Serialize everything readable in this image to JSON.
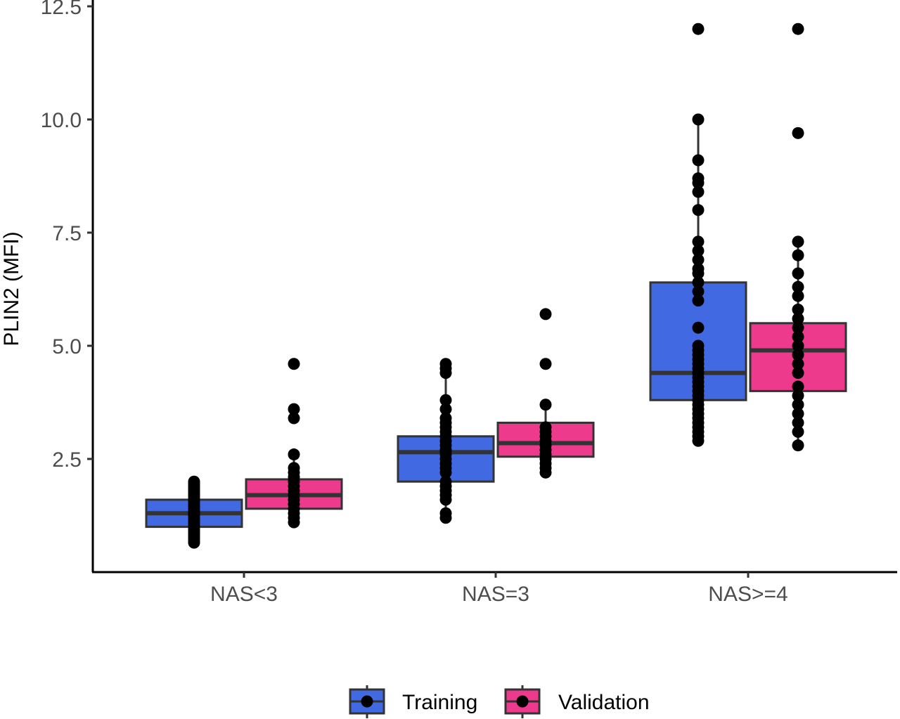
{
  "chart_data": {
    "type": "boxplot",
    "title": "",
    "xlabel": "",
    "ylabel": "PLIN2 (MFI)",
    "categories": [
      "NAS<3",
      "NAS=3",
      "NAS>=4"
    ],
    "y_ticks": [
      "2.5",
      "5.0",
      "7.5",
      "10.0",
      "12.5"
    ],
    "y_tick_values": [
      2.5,
      5.0,
      7.5,
      10.0,
      12.5
    ],
    "ylim": [
      0.0,
      12.5
    ],
    "grid": false,
    "legend_position": "bottom",
    "series": [
      {
        "name": "Training",
        "color": "#4169E1",
        "boxes": [
          {
            "category": "NAS<3",
            "min": 0.65,
            "q1": 1.0,
            "median": 1.3,
            "q3": 1.6,
            "max": 2.0
          },
          {
            "category": "NAS=3",
            "min": 1.2,
            "q1": 2.0,
            "median": 2.65,
            "q3": 3.0,
            "max": 4.6
          },
          {
            "category": "NAS>=4",
            "min": 2.9,
            "q1": 3.8,
            "median": 4.4,
            "q3": 6.4,
            "max": 10.0
          }
        ],
        "points": [
          [
            0.65,
            0.7,
            0.75,
            0.8,
            0.85,
            0.9,
            0.95,
            1.0,
            1.05,
            1.1,
            1.15,
            1.2,
            1.25,
            1.3,
            1.35,
            1.4,
            1.45,
            1.5,
            1.55,
            1.6,
            1.65,
            1.7,
            1.75,
            1.8,
            1.85,
            1.9,
            1.95,
            2.0
          ],
          [
            1.2,
            1.3,
            1.6,
            1.7,
            1.8,
            1.9,
            2.0,
            2.2,
            2.3,
            2.4,
            2.5,
            2.6,
            2.65,
            2.7,
            2.8,
            2.9,
            3.0,
            3.1,
            3.2,
            3.3,
            3.4,
            3.6,
            3.8,
            4.4,
            4.5,
            4.6
          ],
          [
            2.9,
            3.0,
            3.1,
            3.2,
            3.3,
            3.4,
            3.5,
            3.6,
            3.7,
            3.8,
            3.9,
            4.0,
            4.1,
            4.2,
            4.3,
            4.4,
            4.5,
            4.6,
            4.7,
            4.8,
            4.9,
            5.0,
            5.4,
            6.0,
            6.2,
            6.4,
            6.6,
            6.7,
            6.9,
            7.1,
            7.3,
            8.0,
            8.4,
            8.6,
            8.7,
            9.1,
            10.0,
            12.0
          ]
        ]
      },
      {
        "name": "Validation",
        "color": "#EE3A8C",
        "boxes": [
          {
            "category": "NAS<3",
            "min": 1.1,
            "q1": 1.4,
            "median": 1.7,
            "q3": 2.05,
            "max": 2.6
          },
          {
            "category": "NAS=3",
            "min": 2.2,
            "q1": 2.55,
            "median": 2.85,
            "q3": 3.3,
            "max": 3.7
          },
          {
            "category": "NAS>=4",
            "min": 2.8,
            "q1": 4.0,
            "median": 4.9,
            "q3": 5.5,
            "max": 7.3
          }
        ],
        "points": [
          [
            1.1,
            1.2,
            1.3,
            1.4,
            1.5,
            1.6,
            1.7,
            1.8,
            1.9,
            2.0,
            2.1,
            2.2,
            2.3,
            2.6,
            3.4,
            3.6,
            4.6
          ],
          [
            2.2,
            2.3,
            2.4,
            2.5,
            2.6,
            2.7,
            2.8,
            2.9,
            3.0,
            3.1,
            3.2,
            3.7,
            4.6,
            5.7
          ],
          [
            2.8,
            3.1,
            3.3,
            3.5,
            3.7,
            3.9,
            4.1,
            4.4,
            4.6,
            4.8,
            5.0,
            5.2,
            5.4,
            5.6,
            5.8,
            6.1,
            6.3,
            6.6,
            7.0,
            7.3,
            9.7,
            12.0
          ]
        ]
      }
    ]
  }
}
